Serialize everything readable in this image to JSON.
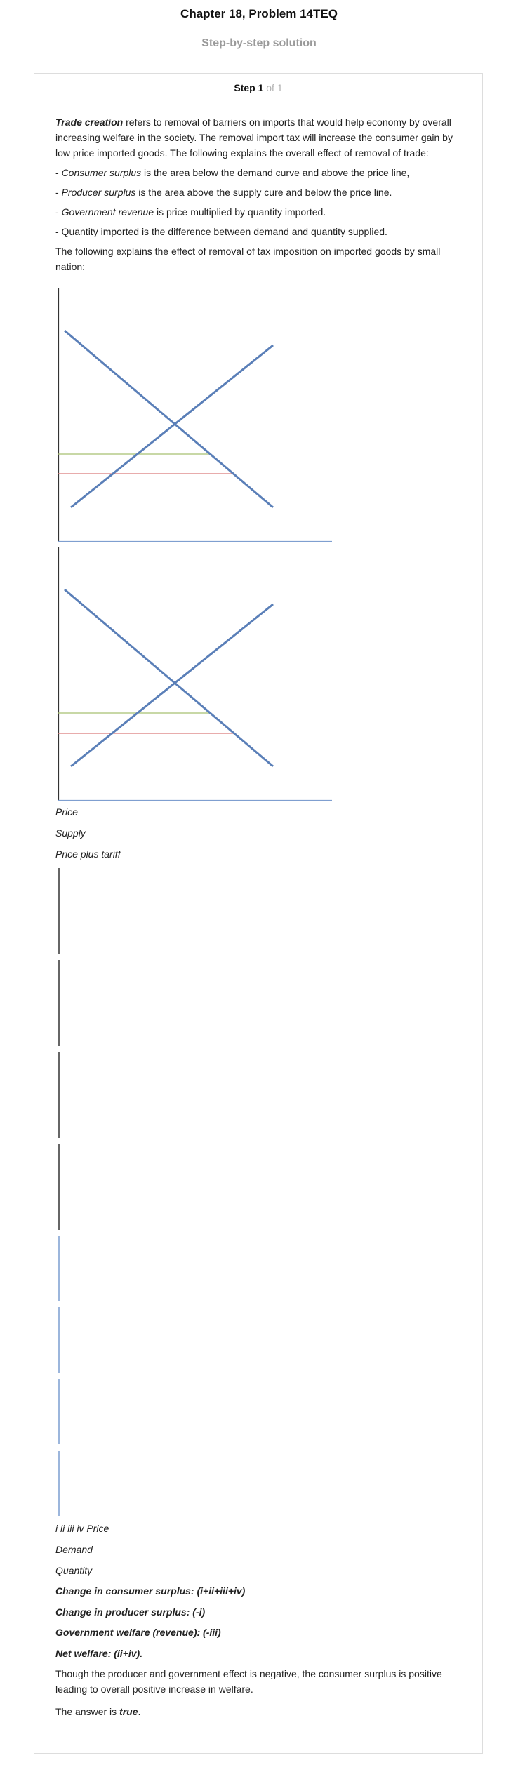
{
  "header": {
    "title": "Chapter 18, Problem 14TEQ",
    "subtitle": "Step-by-step solution"
  },
  "step": {
    "label": "Step 1",
    "of": "of 1"
  },
  "intro": {
    "term": "Trade creation",
    "text": " refers to removal of barriers on imports that would help economy by overall increasing welfare in the society. The removal import tax will increase the consumer gain by low price imported goods. The following explains the overall effect of removal of trade:"
  },
  "bullets": [
    {
      "prefix": "- ",
      "term": "Consumer surplus",
      "text": " is the area below the demand curve and above the price line,"
    },
    {
      "prefix": "- ",
      "term": "Producer surplus",
      "text": " is the area above the supply cure and below the price line."
    },
    {
      "prefix": "- ",
      "term": "Government revenue",
      "text": " is price multiplied by quantity imported."
    },
    {
      "prefix": "",
      "term": "",
      "text": "- Quantity imported is the difference between demand and quantity supplied."
    }
  ],
  "lead": "The following explains the effect of removal of tax imposition on imported goods by small nation:",
  "graph_labels": {
    "price": "Price",
    "supply": "Supply",
    "price_plus_tariff": "Price plus tariff",
    "areas_price": "i ii iii iv Price",
    "demand": "Demand",
    "quantity": "Quantity"
  },
  "colors": {
    "axis": "#333333",
    "x_axis": "#7f9fd0",
    "curve": "#5a7fb8",
    "tariff_line": "#a8c070",
    "price_line": "#d97a7a",
    "vertical_dark": "#666666",
    "vertical_light": "#9cb6dc"
  },
  "results": [
    "Change in consumer surplus: (i+ii+iii+iv)",
    "Change in producer surplus: (-i)",
    "Government welfare (revenue): (-iii)",
    "Net welfare: (ii+iv)."
  ],
  "conclusion": "Though the producer and government effect is negative, the consumer surplus is positive leading to overall positive increase in welfare.",
  "answer": {
    "prefix": "The answer is ",
    "value": "true",
    "suffix": "."
  }
}
